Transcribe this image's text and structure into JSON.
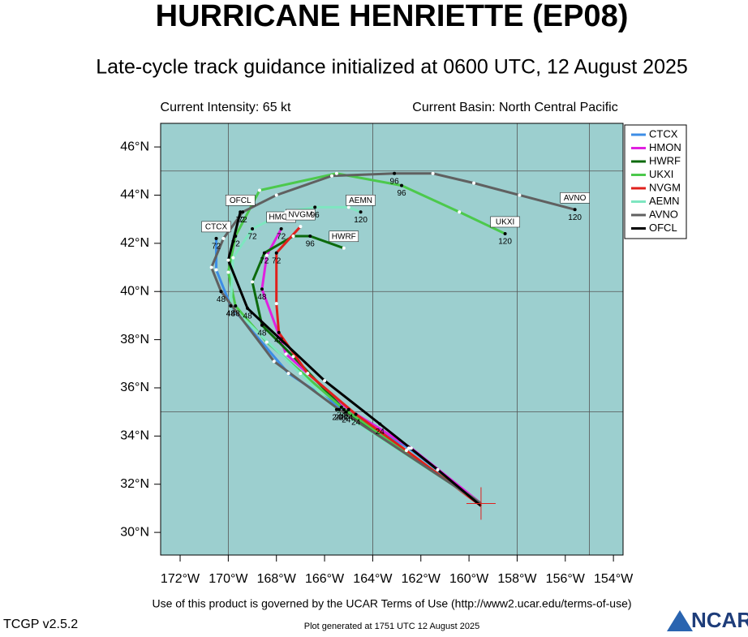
{
  "chart_data": {
    "type": "line",
    "title": "HURRICANE HENRIETTE (EP08)",
    "subtitle": "Late-cycle track guidance initialized at 0600 UTC, 12 August 2025",
    "left_note": "Current Intensity: 65 kt",
    "right_note": "Current Basin: North Central Pacific",
    "footer": "Use of this product is governed by the UCAR Terms of Use (http://www2.ucar.edu/terms-of-use)",
    "version": "TCGP v2.5.2",
    "generated": "Plot generated at 1751 UTC   12 August 2025",
    "logo": "NCAR",
    "xlim": [
      -172.81,
      -153.6
    ],
    "ylim": [
      29.06,
      46.98
    ],
    "xticks": [
      {
        "value": -172,
        "label": "172°W"
      },
      {
        "value": -170,
        "label": "170°W"
      },
      {
        "value": -168,
        "label": "168°W"
      },
      {
        "value": -166,
        "label": "166°W"
      },
      {
        "value": -164,
        "label": "164°W"
      },
      {
        "value": -162,
        "label": "162°W"
      },
      {
        "value": -160,
        "label": "160°W"
      },
      {
        "value": -158,
        "label": "158°W"
      },
      {
        "value": -156,
        "label": "156°W"
      },
      {
        "value": -154,
        "label": "154°W"
      }
    ],
    "yticks": [
      {
        "value": 30,
        "label": "30°N"
      },
      {
        "value": 32,
        "label": "32°N"
      },
      {
        "value": 34,
        "label": "34°N"
      },
      {
        "value": 36,
        "label": "36°N"
      },
      {
        "value": 38,
        "label": "38°N"
      },
      {
        "value": 40,
        "label": "40°N"
      },
      {
        "value": 42,
        "label": "42°N"
      },
      {
        "value": 44,
        "label": "44°N"
      },
      {
        "value": 46,
        "label": "46°N"
      }
    ],
    "xgrid": [
      -170,
      -164,
      -158,
      -155
    ],
    "ygrid": [
      45,
      40,
      35
    ],
    "current_position": {
      "x": -159.5,
      "y": 31.2
    },
    "background": "#9ccfcf",
    "legend": "top-right",
    "series": [
      {
        "name": "CTCX",
        "color": "#3d8ee6",
        "hours": [
          0,
          12,
          24,
          36,
          48,
          60,
          72
        ],
        "x": [
          -159.5,
          -162.5,
          -165.2,
          -167.5,
          -169.9,
          -170.5,
          -170.5
        ],
        "values": [
          31.2,
          33.5,
          35.1,
          36.6,
          39.4,
          40.9,
          42.2
        ]
      },
      {
        "name": "HMON",
        "color": "#e020e0",
        "hours": [
          0,
          12,
          24,
          36,
          48,
          60,
          72
        ],
        "x": [
          -159.5,
          -162.4,
          -165.0,
          -167.6,
          -168.6,
          -168.4,
          -167.8
        ],
        "values": [
          31.2,
          33.5,
          35.1,
          37.4,
          40.1,
          41.5,
          42.6
        ]
      },
      {
        "name": "HWRF",
        "color": "#0c6a0c",
        "hours": [
          0,
          24,
          36,
          48,
          60,
          72,
          84,
          96,
          108
        ],
        "x": [
          -159.5,
          -165.1,
          -167.3,
          -168.6,
          -169.0,
          -168.5,
          -167.3,
          -166.6,
          -165.2
        ],
        "values": [
          31.2,
          35.0,
          37.3,
          38.6,
          40.4,
          41.6,
          42.3,
          42.3,
          41.8
        ]
      },
      {
        "name": "UKXI",
        "color": "#4cc94c",
        "hours": [
          0,
          24,
          36,
          48,
          60,
          72,
          84,
          90,
          96,
          108,
          120
        ],
        "x": [
          -159.5,
          -165.3,
          -168.4,
          -169.7,
          -170.0,
          -169.7,
          -168.7,
          -165.5,
          -162.8,
          -160.4,
          -158.5
        ],
        "values": [
          31.2,
          35.2,
          37.9,
          39.4,
          40.8,
          42.3,
          44.2,
          44.9,
          44.4,
          43.3,
          42.4
        ]
      },
      {
        "name": "NVGM",
        "color": "#e0201c",
        "hours": [
          0,
          12,
          24,
          36,
          48,
          60,
          72,
          84
        ],
        "x": [
          -159.5,
          -162.6,
          -164.7,
          -166.7,
          -167.9,
          -168.0,
          -168.0,
          -167.0
        ],
        "values": [
          31.1,
          33.4,
          34.9,
          36.6,
          38.3,
          39.5,
          41.6,
          42.7
        ]
      },
      {
        "name": "AEMN",
        "color": "#7ee6c0",
        "hours": [
          0,
          24,
          36,
          48,
          60,
          72,
          84,
          96,
          108,
          120
        ],
        "x": [
          -159.5,
          -165.5,
          -167.0,
          -169.9,
          -169.8,
          -169.0,
          -167.6,
          -166.4,
          -165.0,
          -164.5
        ],
        "values": [
          31.2,
          35.1,
          36.6,
          39.4,
          41.4,
          42.6,
          43.3,
          43.5,
          43.5,
          43.3
        ]
      },
      {
        "name": "AVNO",
        "color": "#606060",
        "hours": [
          0,
          24,
          36,
          48,
          54,
          60,
          72,
          78,
          84,
          96,
          102,
          108,
          114,
          120
        ],
        "x": [
          -159.5,
          -165.4,
          -168.1,
          -170.3,
          -170.7,
          -170.2,
          -169.4,
          -168.0,
          -165.7,
          -163.1,
          -161.5,
          -159.8,
          -157.9,
          -155.6
        ],
        "values": [
          31.2,
          35.1,
          37.1,
          40.0,
          41.0,
          42.2,
          43.3,
          44.0,
          44.8,
          44.9,
          44.9,
          44.5,
          44.0,
          43.4
        ]
      },
      {
        "name": "OFCL",
        "color": "#000000",
        "hours": [
          0,
          12,
          24,
          36,
          48,
          60,
          72
        ],
        "x": [
          -159.5,
          -161.3,
          -163.7,
          -166.0,
          -169.2,
          -170.0,
          -169.5
        ],
        "values": [
          31.1,
          32.6,
          34.5,
          36.3,
          39.3,
          41.3,
          43.3
        ]
      }
    ]
  }
}
